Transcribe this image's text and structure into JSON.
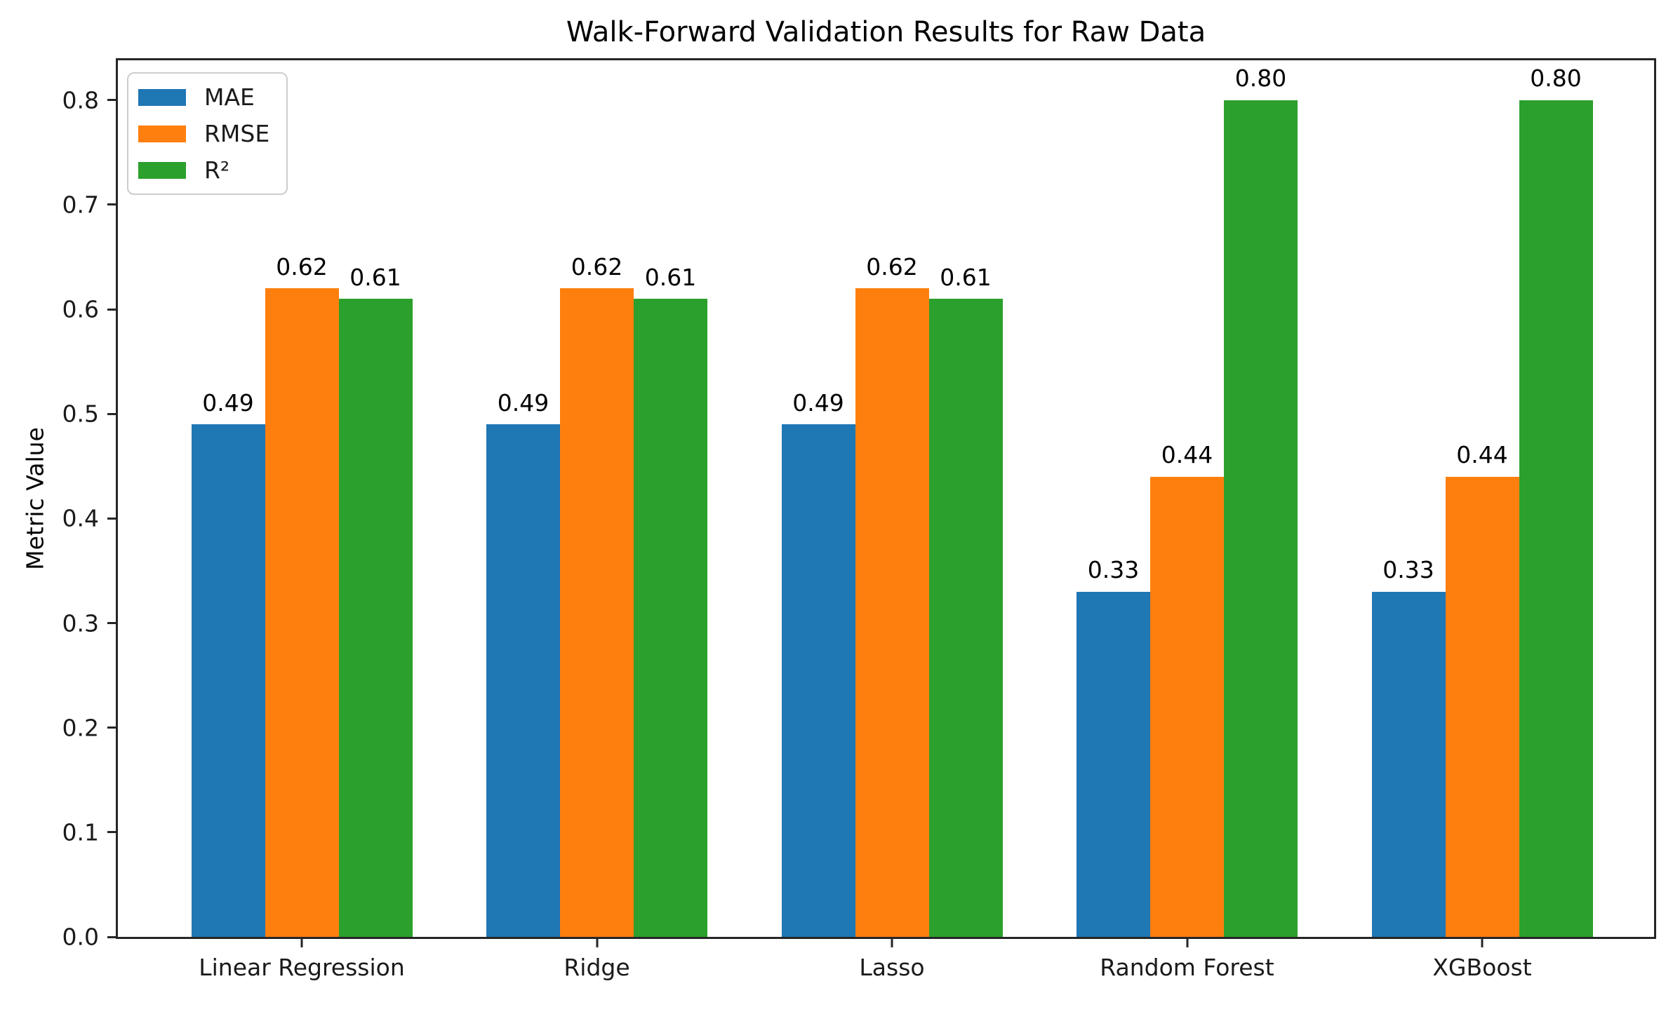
{
  "chart_data": {
    "type": "bar",
    "title": "Walk-Forward Validation Results for Raw Data",
    "xlabel": "",
    "ylabel": "Metric Value",
    "categories": [
      "Linear Regression",
      "Ridge",
      "Lasso",
      "Random Forest",
      "XGBoost"
    ],
    "series": [
      {
        "name": "MAE",
        "color": "#1f77b4",
        "values": [
          0.49,
          0.49,
          0.49,
          0.33,
          0.33
        ],
        "labels": [
          "0.49",
          "0.49",
          "0.49",
          "0.33",
          "0.33"
        ]
      },
      {
        "name": "RMSE",
        "color": "#ff7f0e",
        "values": [
          0.62,
          0.62,
          0.62,
          0.44,
          0.44
        ],
        "labels": [
          "0.62",
          "0.62",
          "0.62",
          "0.44",
          "0.44"
        ]
      },
      {
        "name": "R²",
        "color": "#2ca02c",
        "values": [
          0.61,
          0.61,
          0.61,
          0.8,
          0.8
        ],
        "labels": [
          "0.61",
          "0.61",
          "0.61",
          "0.80",
          "0.80"
        ]
      }
    ],
    "ylim": [
      0,
      0.838
    ],
    "yticks": [
      0.0,
      0.1,
      0.2,
      0.3,
      0.4,
      0.5,
      0.6,
      0.7,
      0.8
    ],
    "ytick_labels": [
      "0.0",
      "0.1",
      "0.2",
      "0.3",
      "0.4",
      "0.5",
      "0.6",
      "0.7",
      "0.8"
    ],
    "bar_width": 0.25,
    "grid": false,
    "value_labels_shown": true,
    "legend": {
      "position": "upper left",
      "entries": [
        "MAE",
        "RMSE",
        "R²"
      ]
    }
  },
  "colors": {
    "spine": "#262626",
    "text": "#1a1a1a",
    "legend_border": "#cccccc",
    "background": "#ffffff"
  }
}
